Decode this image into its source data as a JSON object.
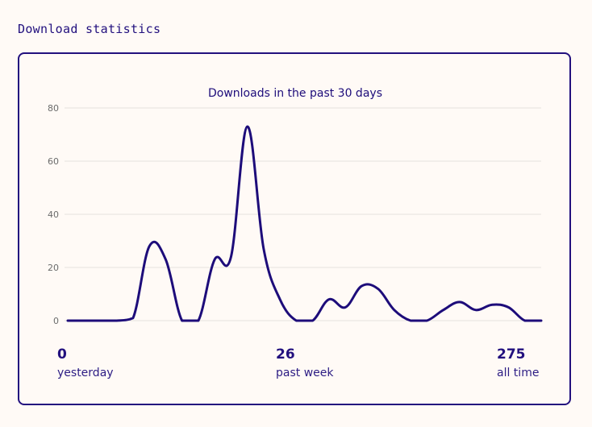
{
  "header": {
    "title": "Download statistics"
  },
  "colors": {
    "line": "#1d0c7a",
    "grid": "#e6e2de",
    "tick": "#6b6b6b",
    "accent": "#22107e"
  },
  "chart_data": {
    "type": "line",
    "title": "Downloads in the past 30 days",
    "xlabel": "",
    "ylabel": "",
    "ylim": [
      0,
      80
    ],
    "yticks": [
      0,
      20,
      40,
      60,
      80
    ],
    "grid": true,
    "series": [
      {
        "name": "downloads",
        "values": [
          0,
          0,
          0,
          0,
          1,
          28,
          23,
          0,
          0,
          23,
          24,
          73,
          27,
          8,
          0,
          0,
          8,
          5,
          13,
          12,
          4,
          0,
          0,
          4,
          7,
          4,
          6,
          5,
          0,
          0
        ]
      }
    ]
  },
  "stats": [
    {
      "value": "0",
      "label": "yesterday"
    },
    {
      "value": "26",
      "label": "past week"
    },
    {
      "value": "275",
      "label": "all time"
    }
  ]
}
